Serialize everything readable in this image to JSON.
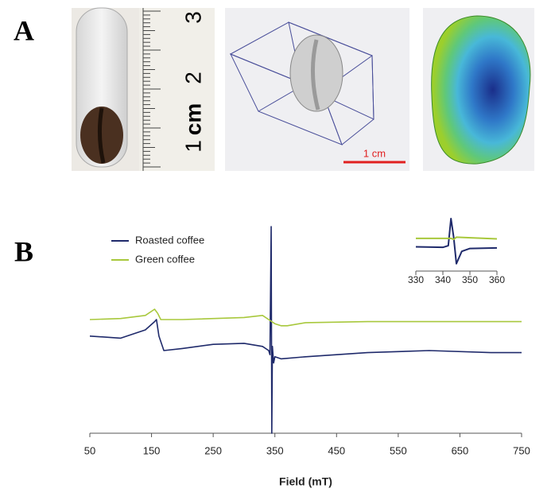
{
  "panel_a": {
    "label": "A",
    "ruler_labels": [
      "1",
      "2",
      "3"
    ],
    "ruler_unit": "cm",
    "scale_bar": "1 cm"
  },
  "panel_b": {
    "label": "B"
  },
  "chart_data": [
    {
      "type": "line",
      "x_label": "Field (mT)",
      "xlim": [
        50,
        750
      ],
      "ylim": [
        0,
        100
      ],
      "xticks": [
        50,
        150,
        250,
        350,
        450,
        550,
        650,
        750
      ],
      "legend": "top-left",
      "series": [
        {
          "name": "Roasted coffee",
          "color": "#1f2a6b",
          "x": [
            50,
            100,
            140,
            155,
            158,
            162,
            170,
            200,
            250,
            300,
            330,
            340,
            342,
            344,
            345,
            346,
            348,
            350,
            360,
            400,
            500,
            600,
            700,
            750
          ],
          "values": [
            47,
            46,
            50,
            54,
            55,
            47,
            40,
            41,
            43,
            43.5,
            42,
            40,
            38,
            100,
            0,
            42,
            34,
            37,
            36,
            37,
            39,
            40,
            39,
            39
          ]
        },
        {
          "name": "Green coffee",
          "color": "#a8c83c",
          "x": [
            50,
            100,
            140,
            155,
            160,
            165,
            200,
            300,
            330,
            340,
            350,
            360,
            370,
            400,
            500,
            600,
            700,
            750
          ],
          "values": [
            55,
            55.5,
            57,
            60,
            58,
            55,
            55,
            56,
            57,
            55,
            53,
            52,
            52,
            53.5,
            54,
            54,
            54,
            54
          ]
        }
      ]
    },
    {
      "type": "line",
      "xlim": [
        330,
        360
      ],
      "ylim": [
        0,
        100
      ],
      "xticks": [
        330,
        340,
        350,
        360
      ],
      "series": [
        {
          "color": "#1f2a6b",
          "x": [
            330,
            340,
            342,
            343,
            344,
            345,
            347,
            350,
            360
          ],
          "values": [
            43,
            42,
            45,
            93,
            60,
            13,
            35,
            40,
            41
          ]
        },
        {
          "color": "#a8c83c",
          "x": [
            330,
            343,
            344,
            345,
            360
          ],
          "values": [
            58,
            58,
            56,
            60,
            57
          ]
        }
      ]
    }
  ]
}
